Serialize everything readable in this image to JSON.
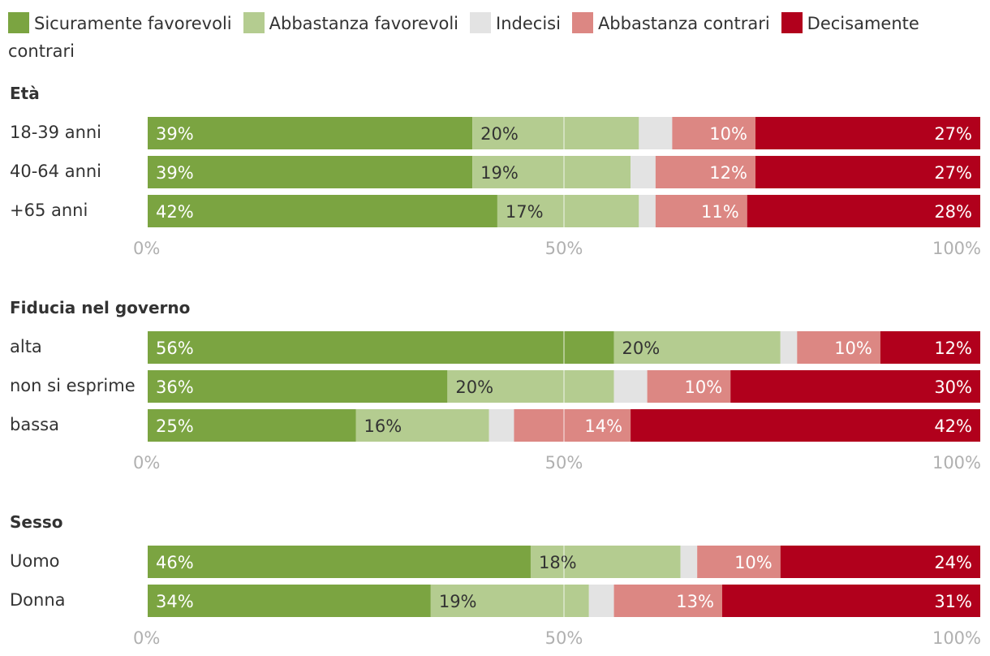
{
  "chart_data": {
    "type": "bar",
    "orientation": "horizontal",
    "stacked": true,
    "legend": [
      {
        "name": "Sicuramente favorevoli",
        "color": "#7ba441"
      },
      {
        "name": "Abbastanza favorevoli",
        "color": "#b4cc90"
      },
      {
        "name": "Indecisi",
        "color": "#e3e3e3"
      },
      {
        "name": "Abbastanza contrari",
        "color": "#dc8783"
      },
      {
        "name": "Decisamente contrari",
        "color": "#b1001c"
      }
    ],
    "xlim": [
      0,
      100
    ],
    "ticks": [
      "0%",
      "50%",
      "100%"
    ],
    "groups": [
      {
        "title": "Età",
        "rows": [
          {
            "label": "18-39 anni",
            "values": [
              39,
              20,
              4,
              10,
              27
            ],
            "labels": [
              "39%",
              "20%",
              "",
              "10%",
              "27%"
            ]
          },
          {
            "label": "40-64 anni",
            "values": [
              39,
              19,
              3,
              12,
              27
            ],
            "labels": [
              "39%",
              "19%",
              "",
              "12%",
              "27%"
            ]
          },
          {
            "label": "+65 anni",
            "values": [
              42,
              17,
              2,
              11,
              28
            ],
            "labels": [
              "42%",
              "17%",
              "",
              "11%",
              "28%"
            ]
          }
        ]
      },
      {
        "title": "Fiducia nel governo",
        "rows": [
          {
            "label": "alta",
            "values": [
              56,
              20,
              2,
              10,
              12
            ],
            "labels": [
              "56%",
              "20%",
              "",
              "10%",
              "12%"
            ]
          },
          {
            "label": "non si esprime",
            "values": [
              36,
              20,
              4,
              10,
              30
            ],
            "labels": [
              "36%",
              "20%",
              "",
              "10%",
              "30%"
            ]
          },
          {
            "label": "bassa",
            "values": [
              25,
              16,
              3,
              14,
              42
            ],
            "labels": [
              "25%",
              "16%",
              "",
              "14%",
              "42%"
            ]
          }
        ]
      },
      {
        "title": "Sesso",
        "rows": [
          {
            "label": "Uomo",
            "values": [
              46,
              18,
              2,
              10,
              24
            ],
            "labels": [
              "46%",
              "18%",
              "",
              "10%",
              "24%"
            ]
          },
          {
            "label": "Donna",
            "values": [
              34,
              19,
              3,
              13,
              31
            ],
            "labels": [
              "34%",
              "19%",
              "",
              "13%",
              "31%"
            ]
          }
        ]
      }
    ]
  }
}
